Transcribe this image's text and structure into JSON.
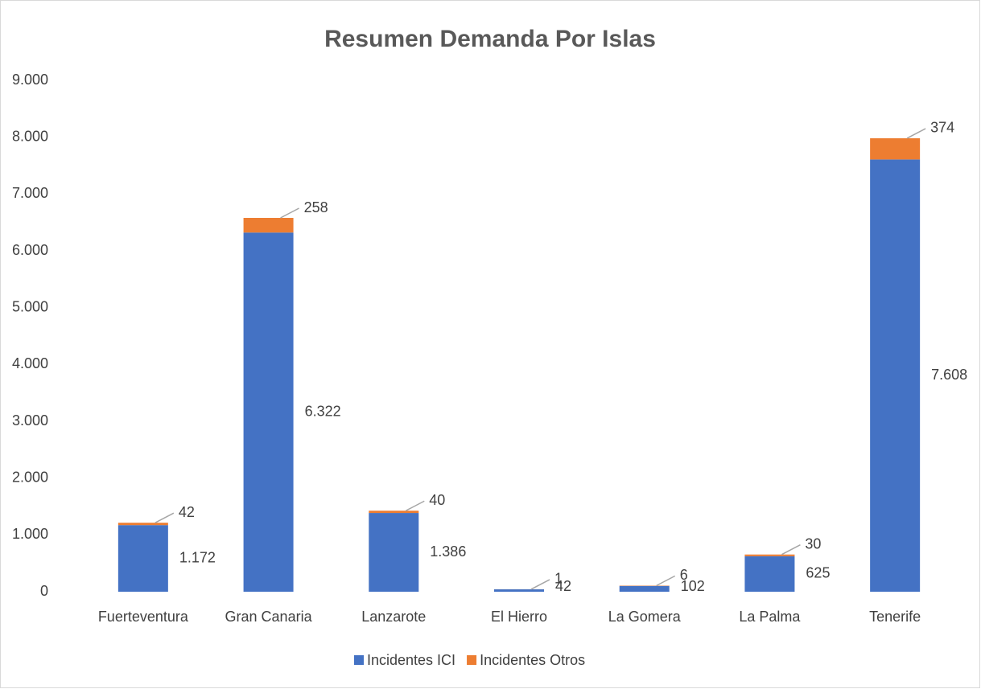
{
  "chart_data": {
    "type": "stacked_bar",
    "title": "Resumen Demanda Por Islas",
    "categories": [
      "Fuerteventura",
      "Gran Canaria",
      "Lanzarote",
      "El Hierro",
      "La Gomera",
      "La Palma",
      "Tenerife"
    ],
    "series": [
      {
        "name": "Incidentes ICI",
        "color": "#4472c4",
        "values": [
          1172,
          6322,
          1386,
          42,
          102,
          625,
          7608
        ],
        "value_labels": [
          "1.172",
          "6.322",
          "1.386",
          "42",
          "102",
          "625",
          "7.608"
        ]
      },
      {
        "name": "Incidentes Otros",
        "color": "#ed7d31",
        "values": [
          42,
          258,
          40,
          1,
          6,
          30,
          374
        ]
      }
    ],
    "ylim": [
      0,
      9000
    ],
    "yticks": [
      0,
      {
        "value": 1000,
        "label": "1.000"
      },
      {
        "value": 2000,
        "label": "2.000"
      },
      {
        "value": 3000,
        "label": "3.000"
      },
      {
        "value": 4000,
        "label": "4.000"
      },
      {
        "value": 5000,
        "label": "5.000"
      },
      {
        "value": 6000,
        "label": "6.000"
      },
      {
        "value": 7000,
        "label": "7.000"
      },
      {
        "value": 8000,
        "label": "8.000"
      },
      {
        "value": 9000,
        "label": "9.000"
      }
    ],
    "grid": false,
    "legend": "bottom"
  }
}
